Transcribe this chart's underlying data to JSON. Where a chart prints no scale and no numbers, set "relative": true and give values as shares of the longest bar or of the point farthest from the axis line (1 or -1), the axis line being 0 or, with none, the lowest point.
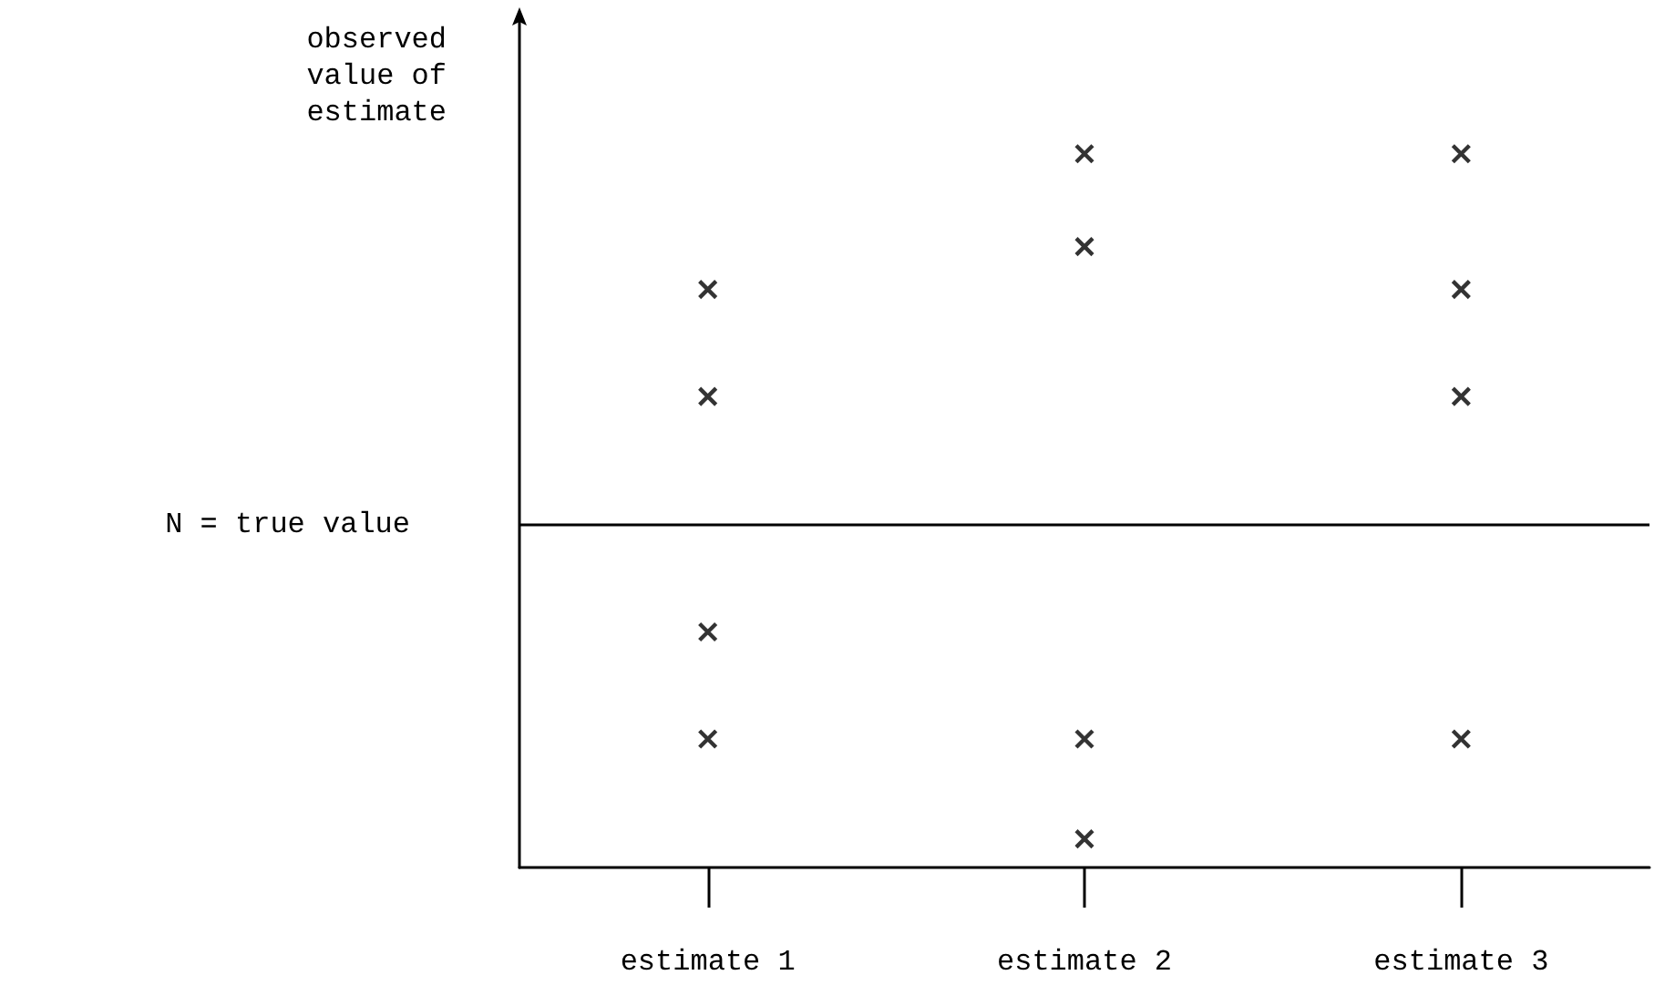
{
  "chart_data": {
    "type": "scatter",
    "relative": true,
    "ylabel": "observed value of estimate",
    "categories": [
      "estimate 1",
      "estimate 2",
      "estimate 3"
    ],
    "marker": "cross",
    "grid": false,
    "series": [
      {
        "color": "#000000",
        "x": [
          "estimate 1",
          "estimate 1",
          "estimate 1",
          "estimate 1"
        ],
        "values": [
          0.81,
          0.66,
          0.33,
          0.18
        ]
      },
      {
        "color": "#000000",
        "x": [
          "estimate 2",
          "estimate 2",
          "estimate 2",
          "estimate 2"
        ],
        "values": [
          1,
          0.87,
          0.18,
          0.04
        ]
      },
      {
        "color": "#000000",
        "x": [
          "estimate 3",
          "estimate 3",
          "estimate 3",
          "estimate 3"
        ],
        "values": [
          1,
          0.81,
          0.66,
          0.18
        ]
      }
    ],
    "ref_lines": [
      {
        "axis": "y",
        "value": 0.48,
        "label": "N = true value",
        "color": "#000000"
      }
    ]
  }
}
